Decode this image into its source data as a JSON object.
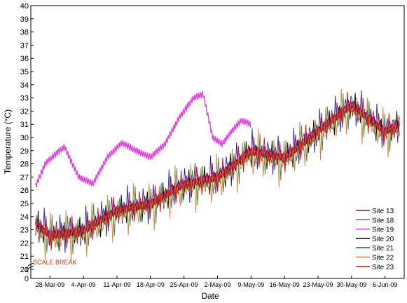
{
  "chart_data": {
    "type": "line",
    "xlabel": "Date",
    "ylabel": "Temperature (°C)",
    "annotation": "SCALE BREAK",
    "ylim": [
      0,
      40
    ],
    "y_ticks": [
      "0",
      "1",
      "20",
      "21",
      "22",
      "23",
      "24",
      "25",
      "26",
      "27",
      "28",
      "29",
      "30",
      "31",
      "32",
      "33",
      "34",
      "35",
      "36",
      "37",
      "38",
      "39",
      "40"
    ],
    "x_ticks": [
      "28-Mar-09",
      "4-Apr-09",
      "11-Apr-09",
      "18-Apr-09",
      "25-Apr-09",
      "2-May-09",
      "9-May-09",
      "16-May-09",
      "23-May-09",
      "30-May-09",
      "6-Jun-09"
    ],
    "x_range": [
      "24-Mar-09",
      "10-Jun-09"
    ],
    "legend_position": "bottom-right",
    "grid": false,
    "series": [
      {
        "name": "Site 13",
        "color": "#8b1a1a",
        "dates": [
          "25-Mar-09",
          "28-Mar-09",
          "4-Apr-09",
          "11-Apr-09",
          "18-Apr-09",
          "25-Apr-09",
          "2-May-09",
          "9-May-09",
          "16-May-09",
          "23-May-09",
          "30-May-09",
          "6-Jun-09",
          "9-Jun-09"
        ],
        "values": [
          23.5,
          22.6,
          23.0,
          24.5,
          25.0,
          26.5,
          27.0,
          29.0,
          28.5,
          30.5,
          32.5,
          30.5,
          31.0
        ]
      },
      {
        "name": "Site 18",
        "color": "#2e8b57",
        "dates": [
          "25-Mar-09",
          "28-Mar-09",
          "4-Apr-09",
          "11-Apr-09",
          "18-Apr-09",
          "25-Apr-09",
          "2-May-09",
          "9-May-09",
          "16-May-09",
          "23-May-09",
          "30-May-09",
          "6-Jun-09",
          "9-Jun-09"
        ],
        "values": [
          23.3,
          22.5,
          22.9,
          24.3,
          24.9,
          26.3,
          26.8,
          28.8,
          28.3,
          30.3,
          32.3,
          30.3,
          30.8
        ]
      },
      {
        "name": "Site 19",
        "color": "#e040e0",
        "dates": [
          "25-Mar-09",
          "27-Mar-09",
          "29-Mar-09",
          "31-Mar-09",
          "3-Apr-09",
          "6-Apr-09",
          "9-Apr-09",
          "12-Apr-09",
          "15-Apr-09",
          "18-Apr-09",
          "21-Apr-09",
          "24-Apr-09",
          "27-Apr-09",
          "29-Apr-09",
          "1-May-09",
          "3-May-09",
          "5-May-09",
          "7-May-09",
          "9-May-09"
        ],
        "values": [
          26.3,
          28.0,
          28.7,
          29.3,
          27.0,
          26.5,
          28.5,
          29.6,
          29.0,
          28.5,
          29.5,
          31.5,
          33.0,
          33.3,
          30.0,
          29.5,
          30.5,
          31.3,
          31.0
        ]
      },
      {
        "name": "Site 20",
        "color": "#000000",
        "dates": [
          "25-Mar-09",
          "28-Mar-09",
          "4-Apr-09",
          "11-Apr-09",
          "18-Apr-09",
          "25-Apr-09",
          "2-May-09",
          "9-May-09",
          "16-May-09",
          "23-May-09",
          "30-May-09",
          "6-Jun-09",
          "9-Jun-09"
        ],
        "values": [
          23.4,
          22.5,
          22.8,
          24.4,
          24.9,
          26.4,
          26.9,
          28.9,
          28.4,
          30.4,
          32.4,
          30.4,
          30.9
        ]
      },
      {
        "name": "Site 21",
        "color": "#2020c0",
        "dates": [
          "25-Mar-09",
          "28-Mar-09",
          "4-Apr-09",
          "11-Apr-09",
          "18-Apr-09",
          "25-Apr-09",
          "2-May-09",
          "9-May-09",
          "16-May-09",
          "23-May-09",
          "30-May-09",
          "6-Jun-09",
          "9-Jun-09"
        ],
        "values": [
          23.6,
          22.7,
          23.1,
          24.6,
          25.1,
          26.6,
          27.1,
          29.1,
          28.6,
          30.6,
          32.6,
          30.6,
          31.1
        ]
      },
      {
        "name": "Site 22",
        "color": "#e08030",
        "dates": [
          "25-Mar-09",
          "28-Mar-09",
          "4-Apr-09",
          "11-Apr-09",
          "18-Apr-09",
          "25-Apr-09",
          "2-May-09",
          "9-May-09",
          "16-May-09",
          "23-May-09",
          "30-May-09",
          "6-Jun-09",
          "9-Jun-09"
        ],
        "values": [
          23.2,
          22.4,
          22.7,
          24.2,
          24.8,
          26.2,
          26.7,
          28.7,
          28.2,
          30.2,
          32.2,
          30.2,
          30.7
        ]
      },
      {
        "name": "Site 23",
        "color": "#ff0000",
        "dates": [
          "25-Mar-09",
          "28-Mar-09",
          "4-Apr-09",
          "11-Apr-09",
          "18-Apr-09",
          "25-Apr-09",
          "2-May-09",
          "9-May-09",
          "16-May-09",
          "23-May-09",
          "30-May-09",
          "6-Jun-09",
          "9-Jun-09"
        ],
        "values": [
          23.5,
          22.6,
          23.0,
          24.5,
          25.0,
          26.5,
          27.0,
          29.0,
          28.5,
          30.5,
          32.5,
          30.5,
          31.0
        ]
      }
    ]
  }
}
